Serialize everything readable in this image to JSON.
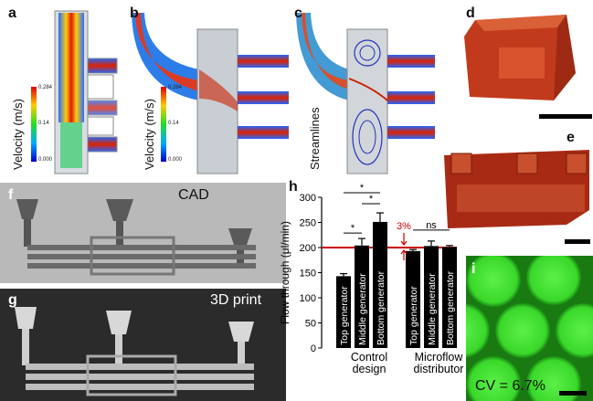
{
  "panels": {
    "a": "a",
    "b": "b",
    "c": "c",
    "d": "d",
    "e": "e",
    "f": "f",
    "g": "g",
    "h": "h",
    "i": "i"
  },
  "sim": {
    "velocity_axis": "Velocity (m/s)",
    "colorbar_max": "0.284",
    "colorbar_mid": "0.14",
    "colorbar_min": "0.000",
    "streamlines_label": "Streamlines"
  },
  "render_labels": {
    "cad": "CAD",
    "print": "3D print"
  },
  "chart_data": {
    "type": "bar",
    "ylabel": "Flow through (μl/min)",
    "ylim": [
      0,
      300
    ],
    "yticks": [
      0,
      50,
      100,
      150,
      200,
      250,
      300
    ],
    "reference_line": 200,
    "groups": [
      "Control design",
      "Microflow distributor"
    ],
    "categories": [
      "Top generator",
      "Middle generator",
      "Bottom generator",
      "Top generator",
      "Middle generator",
      "Bottom generator"
    ],
    "values": [
      143,
      204,
      251,
      193,
      203,
      201
    ],
    "errors": [
      5,
      14,
      18,
      3,
      10,
      3
    ],
    "annotations": {
      "significance": [
        "*",
        "*",
        "*",
        "ns"
      ],
      "tolerance": "3%"
    },
    "colors": {
      "bars": "#000000",
      "reference": "#cc0000"
    }
  },
  "micrograph": {
    "cv_text": "CV = 6.7%"
  },
  "colors": {
    "resin": "#c0391b",
    "droplet_green": "#33dd22"
  }
}
